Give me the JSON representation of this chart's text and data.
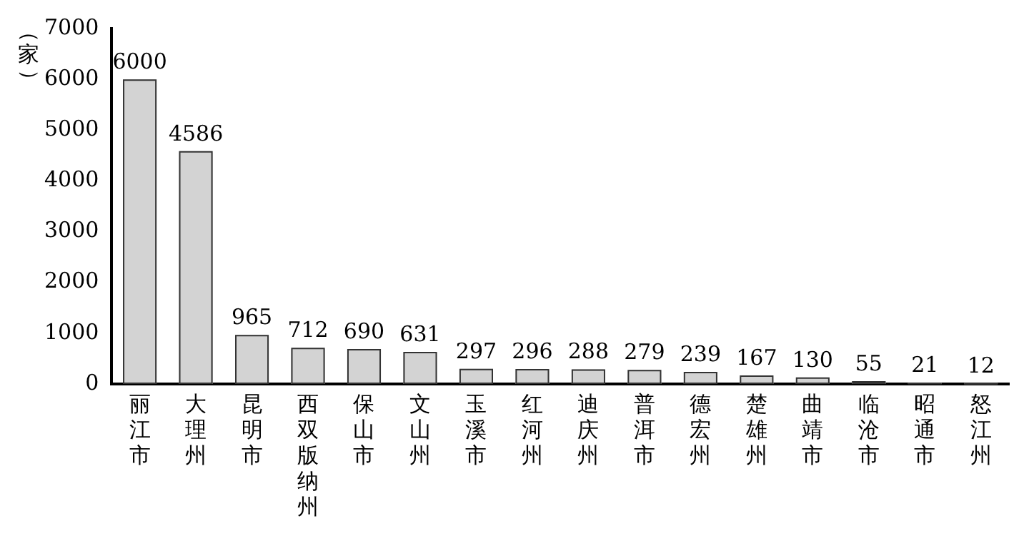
{
  "chart_data": {
    "type": "bar",
    "ylabel": "（家）",
    "categories": [
      "丽江市",
      "大理州",
      "昆明市",
      "西双版纳州",
      "保山市",
      "文山州",
      "玉溪市",
      "红河州",
      "迪庆州",
      "普洱市",
      "德宏州",
      "楚雄州",
      "曲靖市",
      "临沧市",
      "昭通市",
      "怒江州"
    ],
    "values": [
      6000,
      4586,
      965,
      712,
      690,
      631,
      297,
      296,
      288,
      279,
      239,
      167,
      130,
      55,
      21,
      12
    ],
    "color": "#d3d3d3",
    "data_labels": true,
    "grid": false,
    "legend": false,
    "ylim": [
      0,
      7000
    ],
    "yticks": [
      0,
      1000,
      2000,
      3000,
      4000,
      5000,
      6000,
      7000
    ]
  }
}
